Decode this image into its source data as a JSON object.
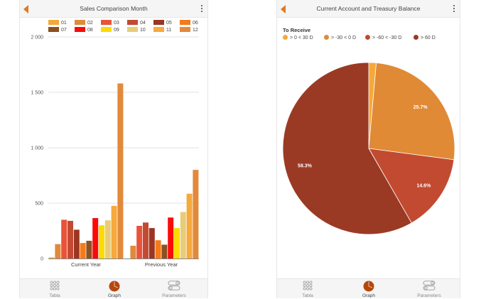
{
  "left": {
    "title": "Sales Comparison Month",
    "tabs": [
      {
        "label": "Tabla",
        "icon": "grid-dots-icon",
        "active": false
      },
      {
        "label": "Graph",
        "icon": "pie-chart-icon",
        "active": true
      },
      {
        "label": "Parameters",
        "icon": "toggles-icon",
        "active": false
      }
    ]
  },
  "right": {
    "title": "Current Account and Treasury Balance",
    "legend_title": "To Receive",
    "tabs": [
      {
        "label": "Tabla",
        "icon": "grid-dots-icon",
        "active": false
      },
      {
        "label": "Graph",
        "icon": "pie-chart-icon",
        "active": true
      },
      {
        "label": "Parameters",
        "icon": "toggles-icon",
        "active": false
      }
    ]
  },
  "colors": {
    "accent": "#e07a1f",
    "active_tab": "#b5470e"
  },
  "chart_data": [
    {
      "type": "bar",
      "title": "Sales Comparison Month",
      "categories": [
        "Current Year",
        "Previous Year"
      ],
      "ylim": [
        0,
        2000
      ],
      "yticks": [
        0,
        500,
        1000,
        1500,
        2000
      ],
      "ytick_labels": [
        "0",
        "500",
        "1 000",
        "1 500",
        "2 000"
      ],
      "grid": true,
      "legend_placement": "top",
      "series": [
        {
          "name": "01",
          "color": "#f4a93a",
          "values": [
            10,
            0
          ]
        },
        {
          "name": "02",
          "color": "#e08a3a",
          "values": [
            130,
            115
          ]
        },
        {
          "name": "03",
          "color": "#e8533a",
          "values": [
            350,
            295
          ]
        },
        {
          "name": "04",
          "color": "#c24a32",
          "values": [
            340,
            325
          ]
        },
        {
          "name": "05",
          "color": "#9b3622",
          "values": [
            260,
            275
          ]
        },
        {
          "name": "06",
          "color": "#f47a1a",
          "values": [
            140,
            165
          ]
        },
        {
          "name": "07",
          "color": "#8e5020",
          "values": [
            160,
            125
          ]
        },
        {
          "name": "08",
          "color": "#fb0a0a",
          "values": [
            365,
            370
          ]
        },
        {
          "name": "09",
          "color": "#fbdb00",
          "values": [
            300,
            275
          ]
        },
        {
          "name": "10",
          "color": "#e8cd78",
          "values": [
            345,
            420
          ]
        },
        {
          "name": "11",
          "color": "#f6a93d",
          "values": [
            475,
            585
          ]
        },
        {
          "name": "12",
          "color": "#e2893a",
          "values": [
            1580,
            800
          ]
        }
      ]
    },
    {
      "type": "pie",
      "title": "Current Account and Treasury Balance",
      "legend_title": "To Receive",
      "legend_placement": "top-left",
      "slices": [
        {
          "label": "> 0 < 30 D",
          "value": 1.4,
          "color": "#f4a93a",
          "data_label": ""
        },
        {
          "label": "> -30 < 0 D",
          "value": 25.7,
          "color": "#e08a36",
          "data_label": "25.7%"
        },
        {
          "label": "> -60 < -30 D",
          "value": 14.6,
          "color": "#c24a30",
          "data_label": "14.6%"
        },
        {
          "label": "> 60 D",
          "value": 58.3,
          "color": "#9b3a24",
          "data_label": "58.3%"
        }
      ]
    }
  ]
}
